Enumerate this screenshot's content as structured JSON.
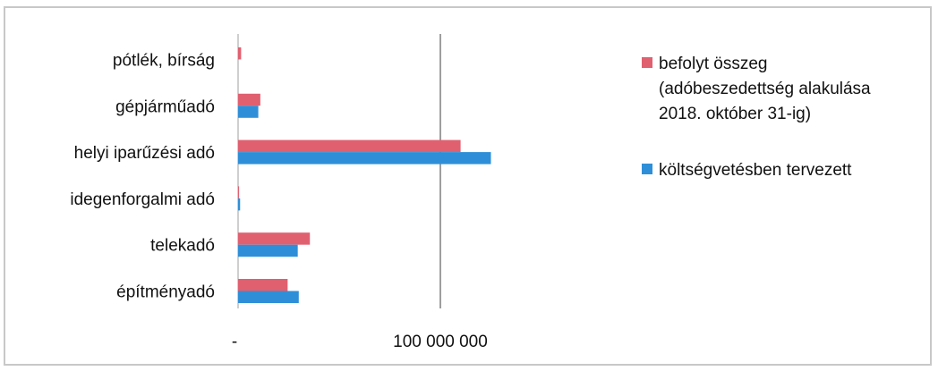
{
  "chart_data": {
    "type": "bar",
    "orientation": "horizontal",
    "categories": [
      "pótlék, bírság",
      "gépjárműadó",
      "helyi iparűzési adó",
      "idegenforgalmi adó",
      "telekadó",
      "építményadó"
    ],
    "series": [
      {
        "name": "befolyt összeg (adóbeszedettség alakulása 2018. október 31-ig)",
        "name_lines": [
          "befolyt összeg",
          "(adóbeszedettség alakulása",
          "2018. október 31-ig)"
        ],
        "color": "#e06070",
        "values": [
          1500000,
          11000000,
          110000000,
          500000,
          35500000,
          24500000
        ]
      },
      {
        "name": "költségvetésben tervezett",
        "name_lines": [
          "költségvetésben tervezett"
        ],
        "color": "#2e8fd8",
        "values": [
          0,
          10000000,
          125000000,
          1000000,
          29500000,
          30000000
        ]
      }
    ],
    "xticks": [
      {
        "value": 0,
        "label": "-"
      },
      {
        "value": 100000000,
        "label": "100 000 000"
      }
    ],
    "xlim": [
      0,
      150000000
    ],
    "grid": true,
    "legend": "right",
    "title": "",
    "xlabel": "",
    "ylabel": ""
  }
}
